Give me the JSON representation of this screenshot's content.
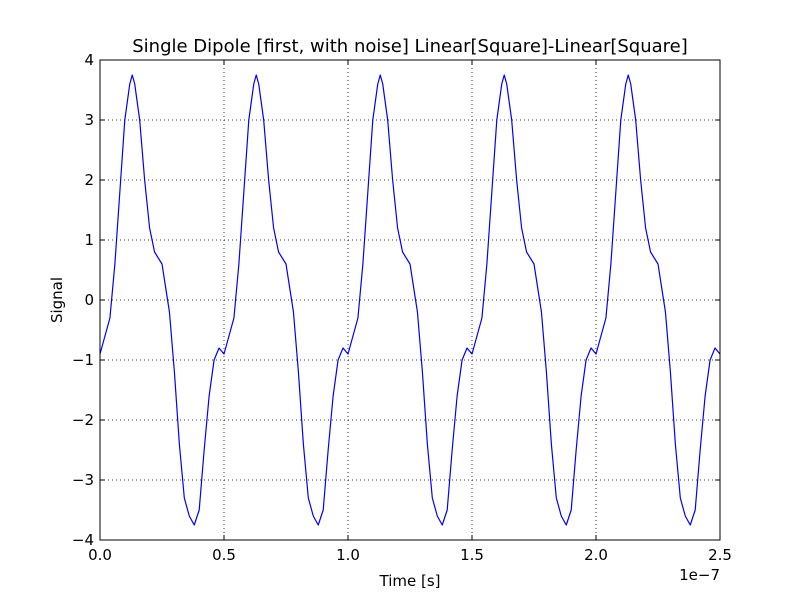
{
  "chart_data": {
    "type": "line",
    "title": "Single Dipole [first, with noise] Linear[Square]-Linear[Square]",
    "xlabel": "Time [s]",
    "ylabel": "Signal",
    "x_offset_label": "1e−7",
    "xlim": [
      0.0,
      2.5
    ],
    "ylim": [
      -4,
      4
    ],
    "x_ticks": [
      0.0,
      0.5,
      1.0,
      1.5,
      2.0,
      2.5
    ],
    "x_tick_labels": [
      "0.0",
      "0.5",
      "1.0",
      "1.5",
      "2.0",
      "2.5"
    ],
    "y_ticks": [
      -4,
      -3,
      -2,
      -1,
      0,
      1,
      2,
      3,
      4
    ],
    "y_tick_labels": [
      "−4",
      "−3",
      "−2",
      "−1",
      "0",
      "1",
      "2",
      "3",
      "4"
    ],
    "grid": true,
    "series": [
      {
        "color": "#0000ff",
        "x": [
          0.0,
          0.02,
          0.04,
          0.06,
          0.08,
          0.1,
          0.12,
          0.13,
          0.14,
          0.16,
          0.18,
          0.2,
          0.22,
          0.25,
          0.28,
          0.3,
          0.32,
          0.34,
          0.36,
          0.38,
          0.4,
          0.42,
          0.44,
          0.46,
          0.48,
          0.5,
          0.5,
          0.52,
          0.54,
          0.56,
          0.58,
          0.6,
          0.62,
          0.63,
          0.64,
          0.66,
          0.68,
          0.7,
          0.72,
          0.75,
          0.78,
          0.8,
          0.82,
          0.84,
          0.86,
          0.88,
          0.9,
          0.92,
          0.94,
          0.96,
          0.98,
          1.0,
          1.0,
          1.02,
          1.04,
          1.06,
          1.08,
          1.1,
          1.12,
          1.13,
          1.14,
          1.16,
          1.18,
          1.2,
          1.22,
          1.25,
          1.28,
          1.3,
          1.32,
          1.34,
          1.36,
          1.38,
          1.4,
          1.42,
          1.44,
          1.46,
          1.48,
          1.5,
          1.5,
          1.52,
          1.54,
          1.56,
          1.58,
          1.6,
          1.62,
          1.63,
          1.64,
          1.66,
          1.68,
          1.7,
          1.72,
          1.75,
          1.78,
          1.8,
          1.82,
          1.84,
          1.86,
          1.88,
          1.9,
          1.92,
          1.94,
          1.96,
          1.98,
          2.0,
          2.0,
          2.02,
          2.04,
          2.06,
          2.08,
          2.1,
          2.12,
          2.13,
          2.14,
          2.16,
          2.18,
          2.2,
          2.22,
          2.25,
          2.28,
          2.3,
          2.32,
          2.34,
          2.36,
          2.38,
          2.4,
          2.42,
          2.44,
          2.46,
          2.48,
          2.5
        ],
        "y": [
          -0.9,
          -0.6,
          -0.3,
          0.6,
          1.8,
          3.0,
          3.6,
          3.75,
          3.6,
          3.0,
          2.0,
          1.2,
          0.8,
          0.6,
          -0.2,
          -1.2,
          -2.4,
          -3.3,
          -3.6,
          -3.75,
          -3.5,
          -2.5,
          -1.6,
          -1.0,
          -0.8,
          -0.9,
          -0.9,
          -0.6,
          -0.3,
          0.6,
          1.8,
          3.0,
          3.6,
          3.75,
          3.6,
          3.0,
          2.0,
          1.2,
          0.8,
          0.6,
          -0.2,
          -1.2,
          -2.4,
          -3.3,
          -3.6,
          -3.75,
          -3.5,
          -2.5,
          -1.6,
          -1.0,
          -0.8,
          -0.9,
          -0.9,
          -0.6,
          -0.3,
          0.6,
          1.8,
          3.0,
          3.6,
          3.75,
          3.6,
          3.0,
          2.0,
          1.2,
          0.8,
          0.6,
          -0.2,
          -1.2,
          -2.4,
          -3.3,
          -3.6,
          -3.75,
          -3.5,
          -2.5,
          -1.6,
          -1.0,
          -0.8,
          -0.9,
          -0.9,
          -0.6,
          -0.3,
          0.6,
          1.8,
          3.0,
          3.6,
          3.75,
          3.6,
          3.0,
          2.0,
          1.2,
          0.8,
          0.6,
          -0.2,
          -1.2,
          -2.4,
          -3.3,
          -3.6,
          -3.75,
          -3.5,
          -2.5,
          -1.6,
          -1.0,
          -0.8,
          -0.9,
          -0.9,
          -0.6,
          -0.3,
          0.6,
          1.8,
          3.0,
          3.6,
          3.75,
          3.6,
          3.0,
          2.0,
          1.2,
          0.8,
          0.6,
          -0.2,
          -1.2,
          -2.4,
          -3.3,
          -3.6,
          -3.75,
          -3.5,
          -2.5,
          -1.6,
          -1.0,
          -0.8,
          -0.9
        ]
      }
    ]
  }
}
